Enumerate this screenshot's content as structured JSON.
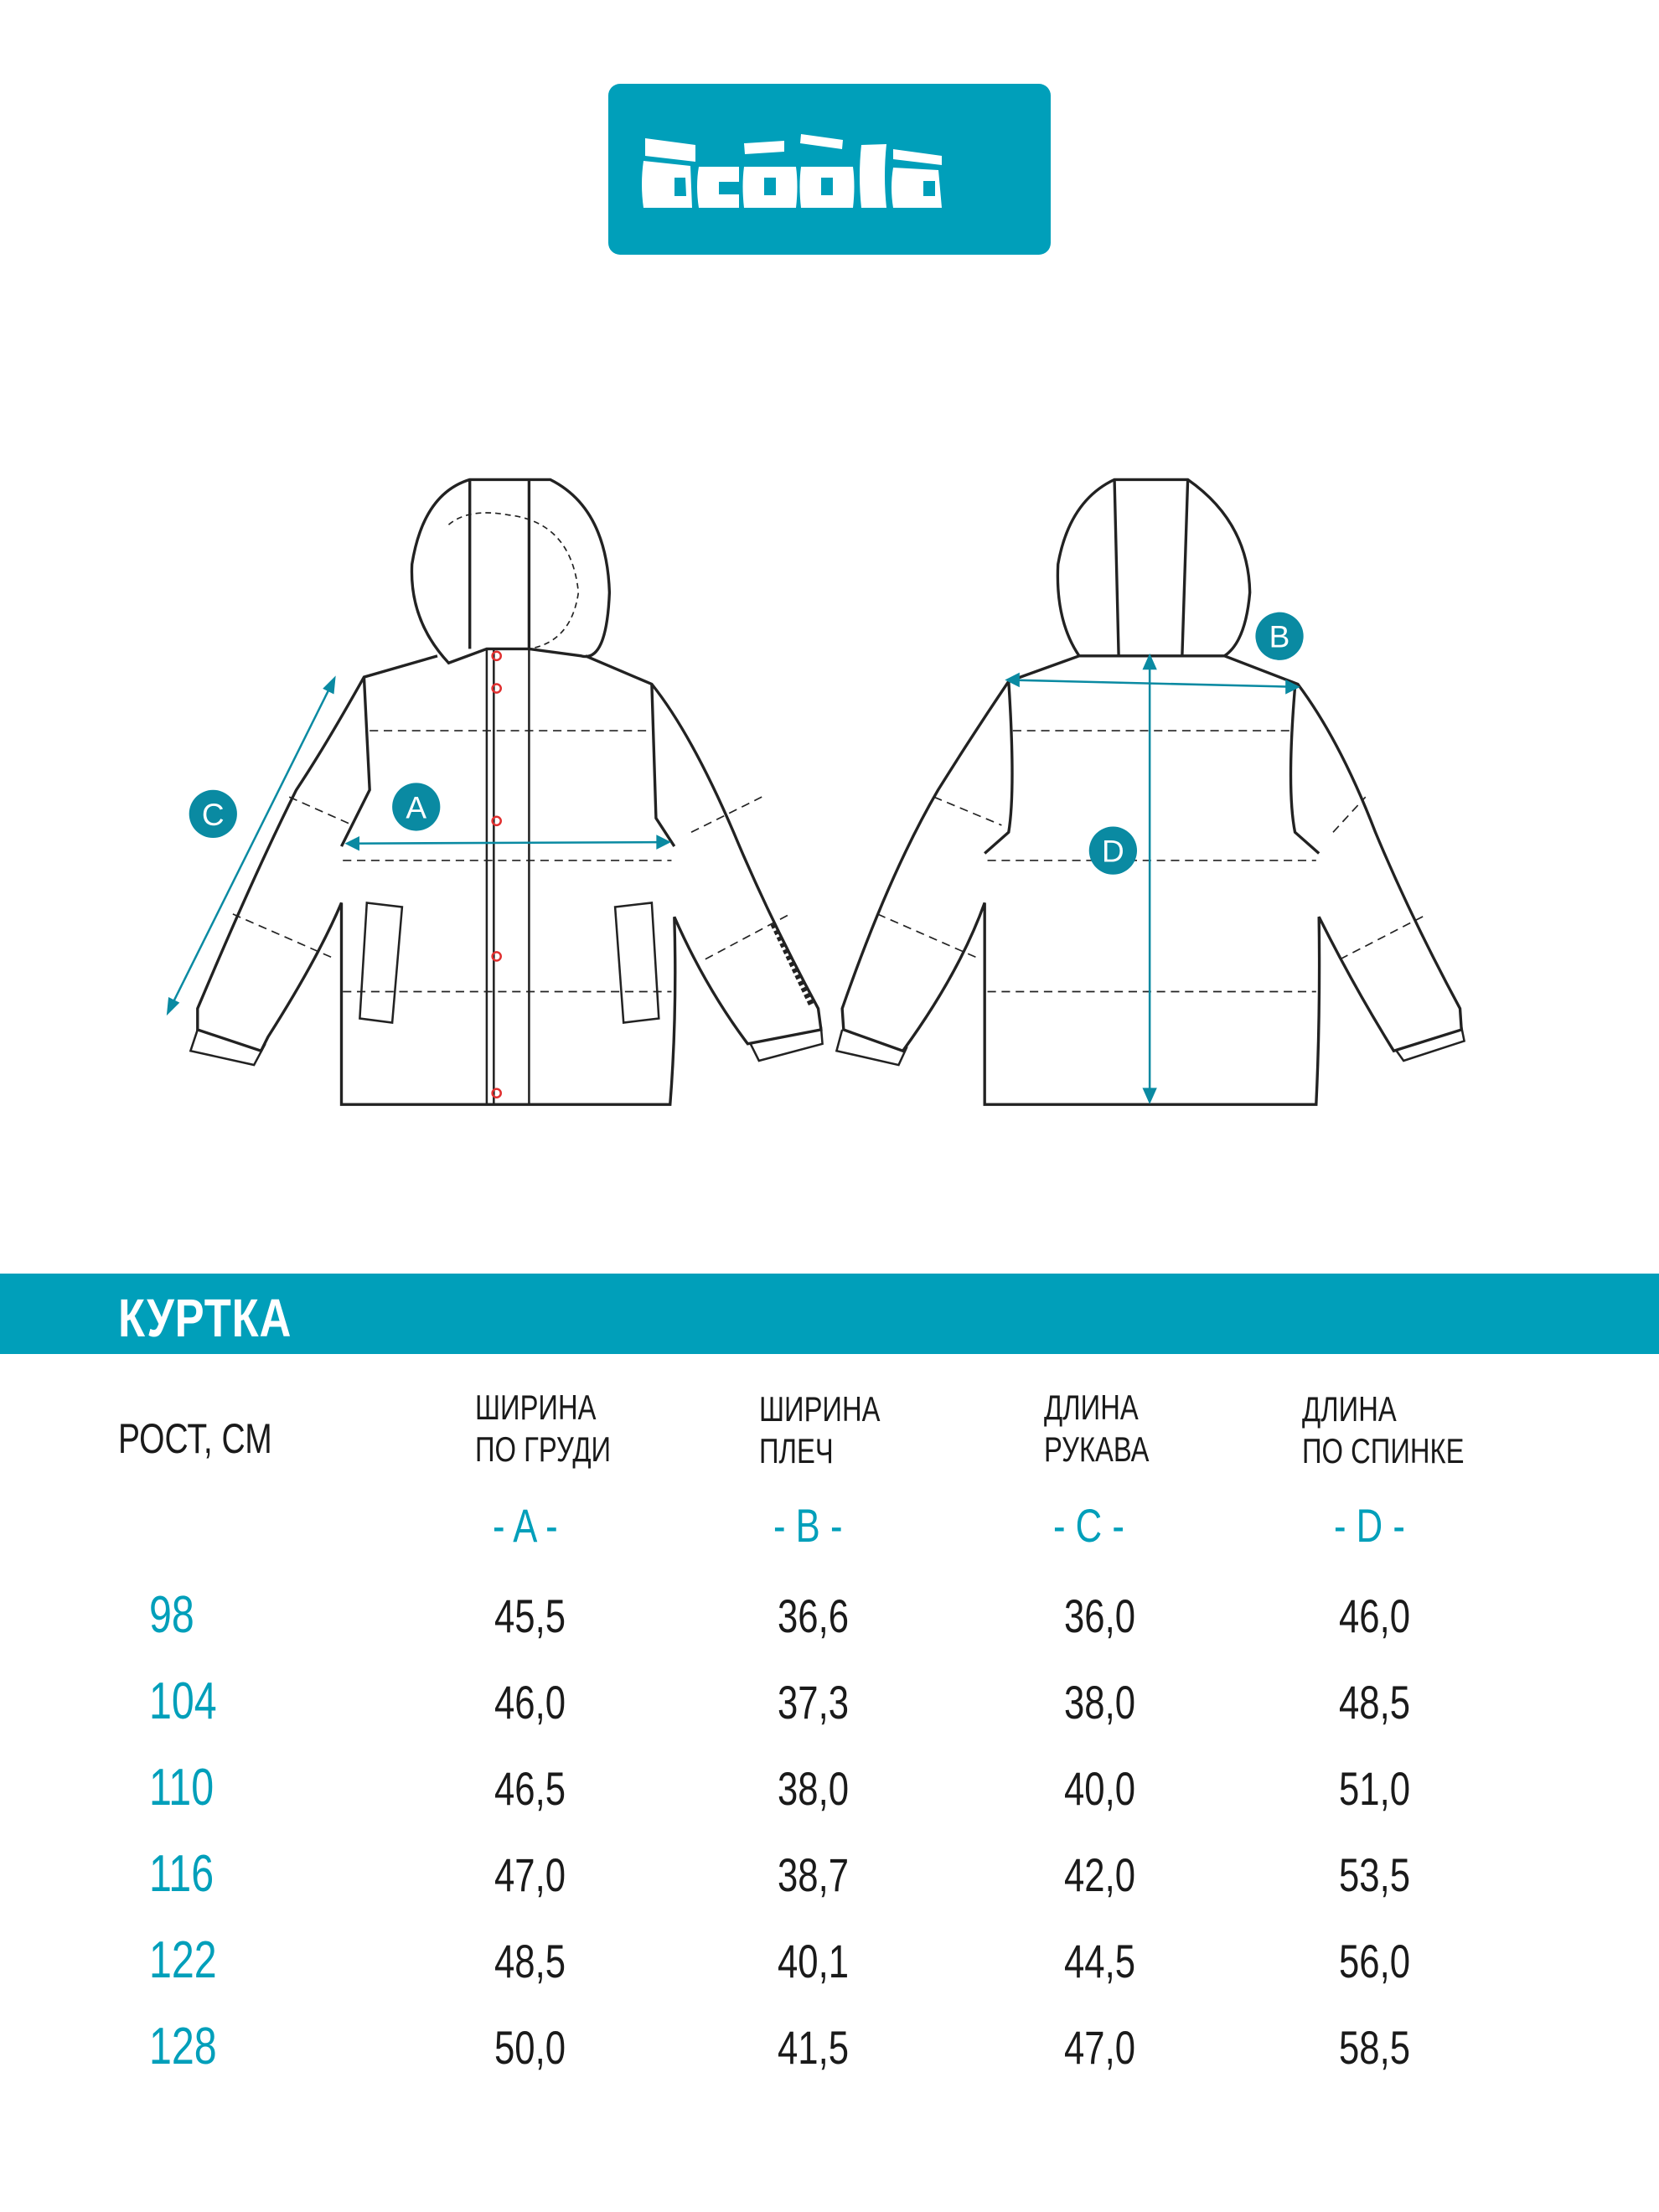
{
  "brand": {
    "name": "acoola",
    "color": "#009fba"
  },
  "diagram": {
    "labels": [
      "A",
      "B",
      "C",
      "D"
    ]
  },
  "section": {
    "title": "КУРТКА"
  },
  "table": {
    "row_header": "РОСТ, СМ",
    "columns": [
      {
        "line1": "ШИРИНА",
        "line2": "ПО ГРУДИ",
        "code": "- A -"
      },
      {
        "line1": "ШИРИНА",
        "line2": "ПЛЕЧ",
        "code": "- B -"
      },
      {
        "line1": "ДЛИНА",
        "line2": "РУКАВА",
        "code": "- C -"
      },
      {
        "line1": "ДЛИНА",
        "line2": "ПО СПИНКЕ",
        "code": "- D -"
      }
    ],
    "rows": [
      {
        "size": "98",
        "values": [
          "45,5",
          "36,6",
          "36,0",
          "46,0"
        ]
      },
      {
        "size": "104",
        "values": [
          "46,0",
          "37,3",
          "38,0",
          "48,5"
        ]
      },
      {
        "size": "110",
        "values": [
          "46,5",
          "38,0",
          "40,0",
          "51,0"
        ]
      },
      {
        "size": "116",
        "values": [
          "47,0",
          "38,7",
          "42,0",
          "53,5"
        ]
      },
      {
        "size": "122",
        "values": [
          "48,5",
          "40,1",
          "44,5",
          "56,0"
        ]
      },
      {
        "size": "128",
        "values": [
          "50,0",
          "41,5",
          "47,0",
          "58,5"
        ]
      }
    ]
  }
}
